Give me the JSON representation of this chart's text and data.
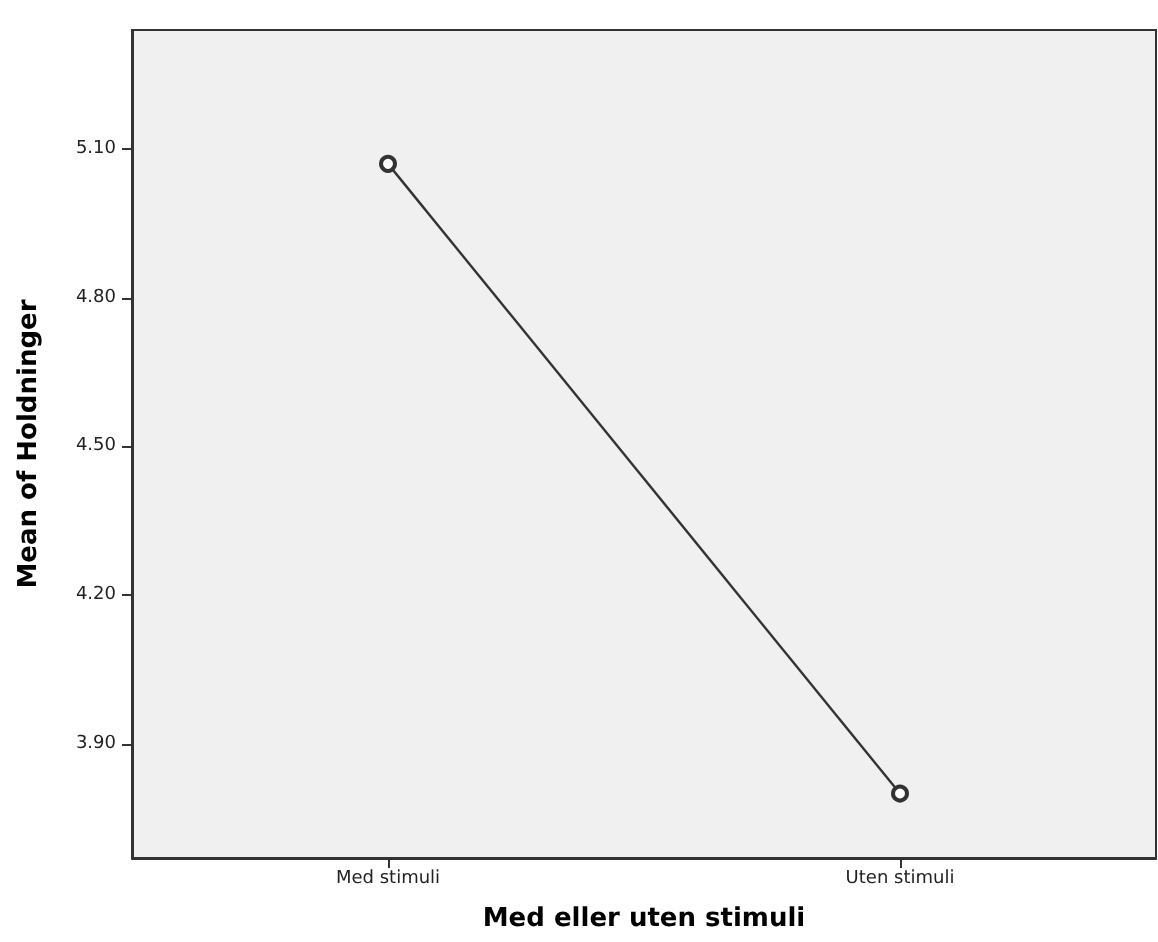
{
  "chart_data": {
    "type": "line",
    "xlabel": "Med eller uten stimuli",
    "ylabel": "Mean of Holdninger",
    "categories": [
      "Med stimuli",
      "Uten stimuli"
    ],
    "series": [
      {
        "color": "#333333",
        "values": [
          5.07,
          3.8
        ]
      }
    ],
    "ylim": [
      3.67,
      5.34
    ],
    "yticks": [
      {
        "value": 3.9,
        "label": "3.90"
      },
      {
        "value": 4.2,
        "label": "4.20"
      },
      {
        "value": 4.5,
        "label": "4.50"
      },
      {
        "value": 4.8,
        "label": "4.80"
      },
      {
        "value": 5.1,
        "label": "5.10"
      }
    ],
    "grid": false,
    "marker": "circle"
  }
}
